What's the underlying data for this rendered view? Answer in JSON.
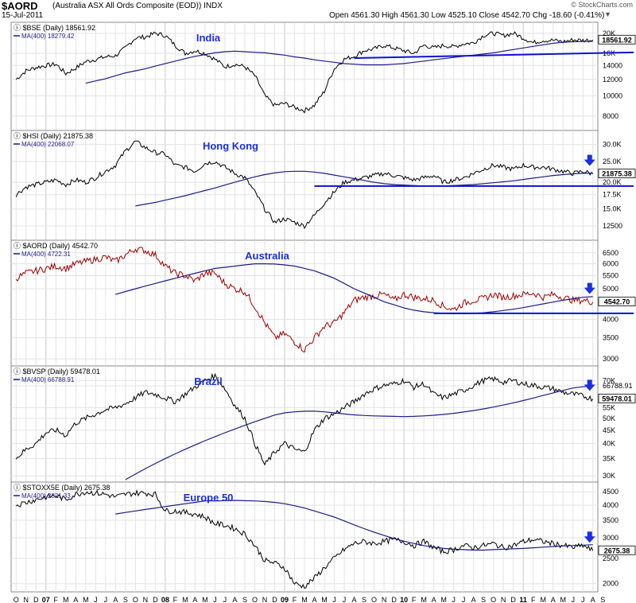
{
  "header": {
    "symbol": "$AORD",
    "description": "(Australia ASX All Ords Composite (EOD))  INDX",
    "date": "15-Jul-2011",
    "quote": "Open 4561.30  High 4561.30  Low 4525.10  Close 4542.70  Chg -18.60 (-0.41%)",
    "copyright": "© StockCharts.com",
    "dropdown_glyph": "▼"
  },
  "colors": {
    "price": "#000000",
    "ma": "#1c1c8c",
    "trend": "#1010d8",
    "arrow": "#1a2ee6",
    "title": "#1a2ee6",
    "aord_red": "#c00000",
    "grid": "#e3e3e3"
  },
  "x_axis": {
    "labels": [
      "O",
      "N",
      "D",
      "07",
      "F",
      "M",
      "A",
      "M",
      "J",
      "J",
      "A",
      "S",
      "O",
      "N",
      "D",
      "08",
      "F",
      "M",
      "A",
      "M",
      "J",
      "J",
      "A",
      "S",
      "O",
      "N",
      "D",
      "09",
      "F",
      "M",
      "A",
      "M",
      "J",
      "J",
      "A",
      "S",
      "O",
      "N",
      "D",
      "10",
      "F",
      "M",
      "A",
      "M",
      "J",
      "J",
      "A",
      "S",
      "O",
      "N",
      "D",
      "11",
      "F",
      "M",
      "A",
      "M",
      "J",
      "J",
      "A",
      "S"
    ],
    "year_labels": [
      "07",
      "08",
      "09",
      "10",
      "11"
    ]
  },
  "chart_data": [
    {
      "type": "line",
      "title": "India",
      "legend": [
        "$BSE (Daily) 18561.92",
        "MA(400) 18279.42"
      ],
      "y_ticks": [
        "8000",
        "10000",
        "12000",
        "14000",
        "16K",
        "18561.92",
        "20K"
      ],
      "y_tick_values": [
        8000,
        10000,
        12000,
        14000,
        16000,
        18561.92,
        20000
      ],
      "scale": "log",
      "ylim": [
        7000,
        22000
      ],
      "current_value": "18561.92",
      "series": [
        {
          "name": "$BSE (Daily)",
          "values": [
            12000,
            13200,
            13700,
            14000,
            14200,
            12800,
            13600,
            14600,
            15000,
            15400,
            15600,
            17000,
            19000,
            19200,
            20000,
            19500,
            17500,
            16000,
            16500,
            16000,
            15000,
            13800,
            14200,
            13800,
            12500,
            10000,
            9000,
            9200,
            8800,
            8500,
            9000,
            10500,
            13500,
            15000,
            15500,
            16500,
            16800,
            17500,
            17000,
            16500,
            16000,
            17500,
            17000,
            17500,
            17200,
            17800,
            18000,
            19500,
            20000,
            19500,
            20000,
            19000,
            18000,
            18500,
            18500,
            18200,
            18600,
            18500,
            18561.92
          ]
        },
        {
          "name": "MA(400)",
          "values": [
            11500,
            11800,
            12100,
            12500,
            12900,
            13200,
            13500,
            13900,
            14300,
            14700,
            15100,
            15500,
            15800,
            16100,
            16300,
            16400,
            16300,
            16200,
            16100,
            15900,
            15700,
            15400,
            15200,
            14900,
            14700,
            14500,
            14300,
            14200,
            14100,
            14100,
            14100,
            14200,
            14300,
            14500,
            14700,
            14900,
            15100,
            15300,
            15500,
            15700,
            15900,
            16100,
            16400,
            16700,
            17000,
            17300,
            17600,
            17900,
            18100,
            18200,
            18250,
            18279.42
          ]
        }
      ],
      "annotations": [
        {
          "type": "trendline",
          "from": [
            34,
            15200
          ],
          "to": [
            59,
            16600
          ]
        }
      ]
    },
    {
      "type": "line",
      "title": "Hong Kong",
      "legend": [
        "$HSI (Daily) 21875.38",
        "MA(400) 22068.07"
      ],
      "y_ticks": [
        "12500",
        "15.0K",
        "17.5K",
        "20.0K",
        "21875.38",
        "25.0K",
        "30.0K"
      ],
      "y_tick_values": [
        12500,
        15000,
        17500,
        20000,
        21875.38,
        25000,
        30000
      ],
      "scale": "log",
      "ylim": [
        11000,
        34000
      ],
      "current_value": "21875.38",
      "series": [
        {
          "name": "$HSI (Daily)",
          "values": [
            17500,
            19000,
            19500,
            20000,
            20500,
            19500,
            20500,
            20000,
            21000,
            22500,
            24000,
            28000,
            31000,
            29000,
            27500,
            27000,
            24000,
            23500,
            22500,
            24500,
            25000,
            23500,
            22000,
            21000,
            18000,
            15000,
            13000,
            13500,
            13000,
            12500,
            14000,
            16000,
            18000,
            20000,
            20500,
            21000,
            21500,
            22000,
            21500,
            21000,
            20500,
            21000,
            21500,
            20000,
            20500,
            21000,
            22000,
            23000,
            24000,
            23500,
            23000,
            24000,
            23500,
            23500,
            23000,
            22500,
            22000,
            22500,
            21875.38
          ]
        },
        {
          "name": "MA(400)",
          "values": [
            15500,
            15800,
            16100,
            16500,
            16900,
            17300,
            17800,
            18300,
            18800,
            19400,
            20000,
            20600,
            21200,
            21700,
            22100,
            22400,
            22500,
            22500,
            22300,
            22000,
            21600,
            21200,
            20800,
            20400,
            20000,
            19700,
            19500,
            19400,
            19300,
            19200,
            19200,
            19200,
            19300,
            19400,
            19500,
            19700,
            19900,
            20100,
            20300,
            20600,
            20900,
            21200,
            21500,
            21700,
            21900,
            22000,
            22068.07
          ]
        }
      ],
      "annotations": [
        {
          "type": "horizontal_line",
          "value": 19200,
          "from_x": 30
        },
        {
          "type": "down_arrow",
          "x": 58
        }
      ]
    },
    {
      "type": "line",
      "title": "Australia",
      "legend": [
        "$AORD (Daily) 4542.70",
        "MA(400) 4722.31"
      ],
      "y_ticks": [
        "3000",
        "3500",
        "4000",
        "4542.70",
        "5000",
        "5500",
        "6000",
        "6500"
      ],
      "y_tick_values": [
        3000,
        3500,
        4000,
        4542.7,
        5000,
        5500,
        6000,
        6500
      ],
      "scale": "log",
      "ylim": [
        2900,
        7000
      ],
      "current_value": "4542.70",
      "series": [
        {
          "name": "$AORD (Daily)",
          "values": [
            5400,
            5600,
            5700,
            5800,
            5900,
            5800,
            6000,
            6100,
            6200,
            6300,
            6100,
            6400,
            6700,
            6600,
            6400,
            5900,
            5600,
            5500,
            5300,
            5600,
            5600,
            5200,
            5000,
            4900,
            4400,
            3900,
            3500,
            3600,
            3400,
            3200,
            3500,
            3800,
            3900,
            4200,
            4600,
            4700,
            4750,
            4800,
            4600,
            4800,
            4700,
            4650,
            4600,
            4400,
            4300,
            4500,
            4600,
            4650,
            4800,
            4700,
            4750,
            4800,
            4850,
            4700,
            4800,
            4700,
            4600,
            4600,
            4542.7
          ]
        },
        {
          "name": "MA(400)",
          "values": [
            4800,
            4900,
            5000,
            5100,
            5200,
            5300,
            5400,
            5500,
            5600,
            5700,
            5800,
            5850,
            5900,
            5950,
            6000,
            6000,
            5990,
            5950,
            5900,
            5800,
            5700,
            5550,
            5400,
            5200,
            5000,
            4850,
            4700,
            4550,
            4450,
            4350,
            4280,
            4230,
            4200,
            4180,
            4170,
            4170,
            4180,
            4200,
            4230,
            4270,
            4310,
            4360,
            4420,
            4480,
            4540,
            4600,
            4650,
            4700,
            4722.31
          ]
        }
      ],
      "annotations": [
        {
          "type": "horizontal_line",
          "value": 4180,
          "from_x": 42
        },
        {
          "type": "down_arrow",
          "x": 58
        }
      ]
    },
    {
      "type": "line",
      "title": "Brazil",
      "legend": [
        "$BVSP (Daily) 59478.01",
        "MA(400) 66788.91"
      ],
      "y_ticks": [
        "30K",
        "35K",
        "40K",
        "45K",
        "50K",
        "55K",
        "59478.01",
        "66788.91",
        "70K"
      ],
      "y_tick_values": [
        30000,
        35000,
        40000,
        45000,
        50000,
        55000,
        59478.01,
        66788.91,
        70000
      ],
      "scale": "log",
      "ylim": [
        29000,
        78000
      ],
      "current_value": "59478.01",
      "series": [
        {
          "name": "$BVSP (Daily)",
          "values": [
            35000,
            38000,
            40000,
            44000,
            45000,
            43000,
            48000,
            50000,
            52000,
            54000,
            55000,
            57000,
            60000,
            63000,
            62000,
            60000,
            58000,
            62000,
            66000,
            70000,
            73000,
            65000,
            56000,
            50000,
            40000,
            33000,
            37000,
            40000,
            38000,
            37000,
            45000,
            50000,
            52000,
            55000,
            58000,
            62000,
            65000,
            67000,
            68000,
            70000,
            66000,
            68000,
            62000,
            60000,
            62000,
            64000,
            67000,
            70000,
            71000,
            69000,
            70000,
            68000,
            67000,
            66000,
            65000,
            63000,
            62000,
            61000,
            59478.01
          ]
        },
        {
          "name": "MA(400)",
          "values": [
            29000,
            30500,
            32000,
            33500,
            35000,
            36500,
            38000,
            39500,
            41000,
            42500,
            44000,
            45500,
            47000,
            48500,
            50000,
            51500,
            52500,
            53000,
            53300,
            53300,
            53000,
            52500,
            52000,
            51600,
            51300,
            51100,
            51000,
            50900,
            50800,
            50900,
            51100,
            51400,
            51800,
            52300,
            52900,
            53600,
            54400,
            55300,
            56300,
            57400,
            58600,
            59900,
            61300,
            62700,
            64100,
            65500,
            66200,
            66788.91
          ]
        }
      ],
      "annotations": [
        {
          "type": "down_arrow",
          "x": 58
        }
      ]
    },
    {
      "type": "line",
      "title": "Europe 50",
      "legend": [
        "$STOXX5E (Daily) 2675.38",
        "MA(400) 2821.33"
      ],
      "y_ticks": [
        "2000",
        "2500",
        "2675.38",
        "3000",
        "3500",
        "4000",
        "4500"
      ],
      "y_tick_values": [
        2000,
        2500,
        2675.38,
        3000,
        3500,
        4000,
        4500
      ],
      "scale": "log",
      "ylim": [
        1900,
        4800
      ],
      "current_value": "2675.38",
      "series": [
        {
          "name": "$STOXX5E (Daily)",
          "values": [
            4000,
            4100,
            4200,
            4300,
            4350,
            4200,
            4400,
            4500,
            4450,
            4400,
            4300,
            4400,
            4450,
            4450,
            4400,
            3800,
            3800,
            3750,
            3700,
            3600,
            3400,
            3350,
            3250,
            3100,
            2800,
            2450,
            2400,
            2300,
            2000,
            1950,
            2100,
            2300,
            2500,
            2700,
            2850,
            2900,
            2850,
            2900,
            2950,
            2900,
            2800,
            2900,
            2750,
            2650,
            2700,
            2800,
            2750,
            2800,
            2850,
            2750,
            2800,
            2900,
            2950,
            2900,
            2850,
            2800,
            2750,
            2800,
            2675.38
          ]
        },
        {
          "name": "MA(400)",
          "values": [
            3700,
            3750,
            3800,
            3850,
            3900,
            3950,
            4000,
            4050,
            4100,
            4150,
            4150,
            4160,
            4170,
            4160,
            4150,
            4130,
            4100,
            4050,
            3980,
            3900,
            3800,
            3700,
            3600,
            3480,
            3360,
            3250,
            3150,
            3060,
            2980,
            2910,
            2850,
            2800,
            2760,
            2730,
            2710,
            2700,
            2690,
            2690,
            2700,
            2710,
            2720,
            2730,
            2745,
            2760,
            2775,
            2790,
            2800,
            2810,
            2821.33
          ]
        }
      ],
      "annotations": [
        {
          "type": "down_arrow",
          "x": 58
        }
      ]
    }
  ]
}
